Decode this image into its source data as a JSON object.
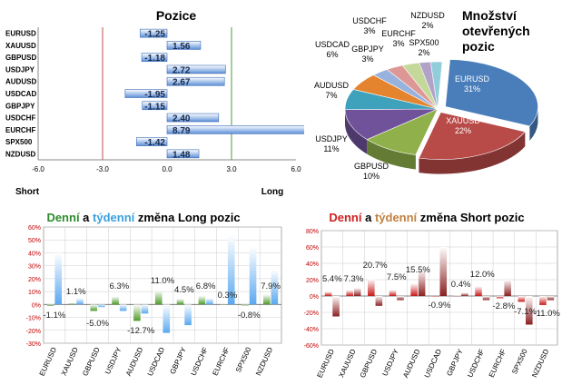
{
  "chart_data": [
    {
      "type": "bar",
      "orientation": "horizontal",
      "title": "Pozice",
      "categories": [
        "EURUSD",
        "XAUUSD",
        "GBPUSD",
        "USDJPY",
        "AUDUSD",
        "USDCAD",
        "GBPJPY",
        "USDCHF",
        "EURCHF",
        "SPX500",
        "NZDUSD"
      ],
      "values": [
        -1.25,
        1.56,
        -1.18,
        2.72,
        2.67,
        -1.95,
        -1.15,
        2.4,
        8.79,
        -1.42,
        1.48
      ],
      "value_labels": [
        "-1.25",
        "1.56",
        "-1.18",
        "2.72",
        "2.67",
        "-1.95",
        "-1.15",
        "2.40",
        "8.79",
        "-1.42",
        "1.48"
      ],
      "xlim": [
        -6,
        6
      ],
      "xticks": [
        "-6.0",
        "-3.0",
        "0.0",
        "3.0",
        "6.0"
      ],
      "left_label": "Short",
      "right_label": "Long",
      "colors": {
        "bar": "#5b8fd9",
        "short_line": "#c0504d",
        "long_line": "#4f9a3a"
      }
    },
    {
      "type": "pie",
      "title_lines": [
        "Množství",
        "otevřených",
        "pozic"
      ],
      "slices": [
        {
          "name": "EURUSD",
          "percent": "31%",
          "value": 31,
          "color": "#4a7ebb"
        },
        {
          "name": "XAUUSD",
          "percent": "22%",
          "value": 22,
          "color": "#b84a47"
        },
        {
          "name": "GBPUSD",
          "percent": "10%",
          "value": 10,
          "color": "#8fb04a"
        },
        {
          "name": "USDJPY",
          "percent": "11%",
          "value": 11,
          "color": "#6f529a"
        },
        {
          "name": "AUDUSD",
          "percent": "7%",
          "value": 7,
          "color": "#3ea2bd"
        },
        {
          "name": "USDCAD",
          "percent": "6%",
          "value": 6,
          "color": "#e5842e"
        },
        {
          "name": "GBPJPY",
          "percent": "3%",
          "value": 3,
          "color": "#97b3dd"
        },
        {
          "name": "USDCHF",
          "percent": "3%",
          "value": 3,
          "color": "#dd9896"
        },
        {
          "name": "EURCHF",
          "percent": "3%",
          "value": 3,
          "color": "#c4d89a"
        },
        {
          "name": "SPX500",
          "percent": "2%",
          "value": 2,
          "color": "#b3a2c8"
        },
        {
          "name": "NZDUSD",
          "percent": "2%",
          "value": 2,
          "color": "#92cddc"
        }
      ]
    },
    {
      "type": "bar",
      "title_parts": [
        {
          "text": "Denní",
          "color": "#2e8b2e"
        },
        {
          "text": " a ",
          "color": "#000000"
        },
        {
          "text": "týdenní",
          "color": "#3aa0e0"
        },
        {
          "text": " změna Long pozic",
          "color": "#000000"
        }
      ],
      "categories": [
        "EURUSD",
        "XAUUSD",
        "GBPUSD",
        "USDJPY",
        "AUDUSD",
        "USDCAD",
        "GBPJPY",
        "USDCHF",
        "EURCHF",
        "SPX500",
        "NZDUSD"
      ],
      "series": [
        {
          "name": "Denní",
          "color": "#4e9a2a",
          "values": [
            -1.1,
            1.1,
            -5.0,
            6.3,
            -12.7,
            11.0,
            4.5,
            6.8,
            0.3,
            -0.8,
            7.9
          ]
        },
        {
          "name": "týdenní",
          "color": "#5aa8f0",
          "values": [
            40,
            5,
            -2,
            -5,
            -7,
            -22,
            -16,
            5,
            54,
            45,
            27
          ]
        }
      ],
      "data_labels": [
        "-1.1%",
        "1.1%",
        "-5.0%",
        "6.3%",
        "-12.7%",
        "11.0%",
        "4.5%",
        "6.8%",
        "0.3%",
        "-0.8%",
        "7.9%"
      ],
      "ylim": [
        -30,
        60
      ],
      "yticks": [
        "-30%",
        "-20%",
        "-10%",
        "0%",
        "10%",
        "20%",
        "30%",
        "40%",
        "50%",
        "60%"
      ]
    },
    {
      "type": "bar",
      "title_parts": [
        {
          "text": "Denní",
          "color": "#d02020"
        },
        {
          "text": " a ",
          "color": "#000000"
        },
        {
          "text": "týdenní",
          "color": "#c08040"
        },
        {
          "text": " změna Short pozic",
          "color": "#000000"
        }
      ],
      "categories": [
        "EURUSD",
        "XAUUSD",
        "GBPUSD",
        "USDJPY",
        "AUDUSD",
        "USDCAD",
        "GBPJPY",
        "USDCHF",
        "EURCHF",
        "SPX500",
        "NZDUSD"
      ],
      "series": [
        {
          "name": "Denní",
          "color": "#c81818",
          "values": [
            5.4,
            7.3,
            20.7,
            7.5,
            15.5,
            -0.9,
            0.4,
            12.0,
            -2.8,
            -7.1,
            -11.0
          ]
        },
        {
          "name": "týdenní",
          "color": "#8a2020",
          "values": [
            -25,
            10,
            -12,
            -5,
            33,
            60,
            4,
            -5,
            20,
            -35,
            -5
          ]
        }
      ],
      "data_labels": [
        "5.4%",
        "7.3%",
        "20.7%",
        "7.5%",
        "15.5%",
        "-0.9%",
        "0.4%",
        "12.0%",
        "-2.8%",
        "-7.1%",
        "-11.0%"
      ],
      "ylim": [
        -60,
        80
      ],
      "yticks": [
        "-60%",
        "-40%",
        "-20%",
        "0%",
        "20%",
        "40%",
        "60%",
        "80%"
      ]
    }
  ]
}
